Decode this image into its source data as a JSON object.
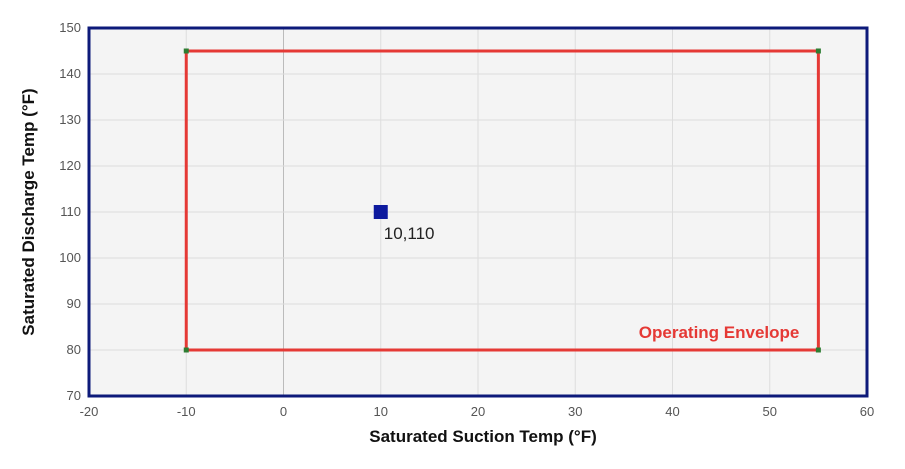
{
  "chart_data": {
    "type": "scatter",
    "title": "",
    "xlabel": "Saturated Suction Temp (°F)",
    "ylabel": "Saturated Discharge Temp (°F)",
    "xlim": [
      -20,
      60
    ],
    "ylim": [
      70,
      150
    ],
    "xticks": [
      -20,
      -10,
      0,
      10,
      20,
      30,
      40,
      50,
      60
    ],
    "yticks": [
      70,
      80,
      90,
      100,
      110,
      120,
      130,
      140,
      150
    ],
    "grid": true,
    "envelope": {
      "name": "Operating Envelope",
      "color": "#e53935",
      "vertex_color": "#2e7d32",
      "points": [
        [
          -10,
          145
        ],
        [
          55,
          145
        ],
        [
          55,
          80
        ],
        [
          -10,
          80
        ],
        [
          -10,
          145
        ]
      ]
    },
    "points": [
      {
        "x": 10,
        "y": 110,
        "label": "10,110",
        "color": "#0d1a9e"
      }
    ],
    "colors": {
      "plot_background": "#f4f4f4",
      "plot_border": "#0d1a7a",
      "grid": "#dddddd",
      "zero_line": "#bbbbbb"
    }
  }
}
